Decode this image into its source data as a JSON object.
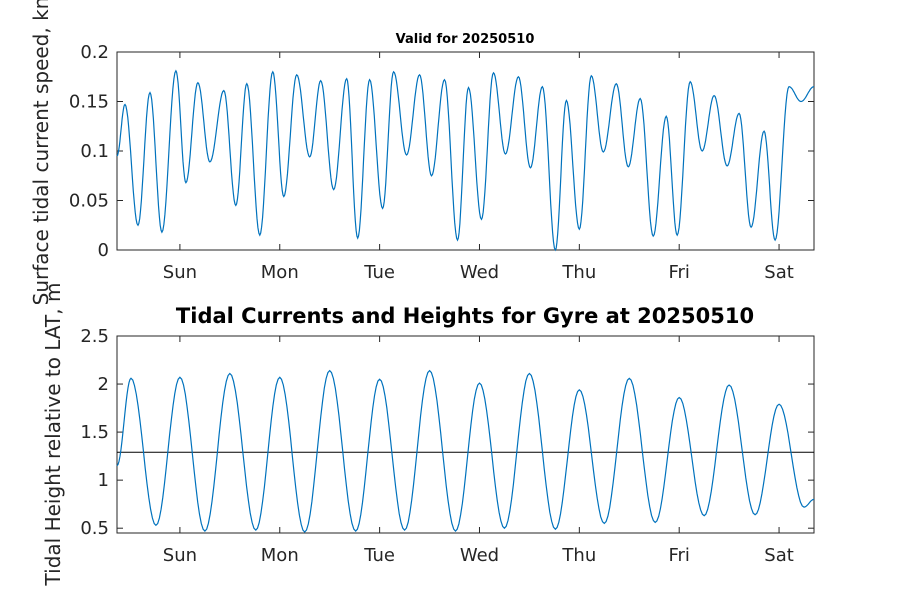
{
  "chart_data": [
    {
      "type": "line",
      "title": "Valid for 20250510",
      "ylabel": "Surface tidal current speed, kn",
      "xlabel": "",
      "ylim": [
        0,
        0.2
      ],
      "yticks": [
        "0",
        "0.05",
        "0.1",
        "0.15",
        "0.2"
      ],
      "ytick_values": [
        0,
        0.05,
        0.1,
        0.15,
        0.2
      ],
      "xlim": [
        -0.63,
        6.35
      ],
      "xticks": [
        "Sun",
        "Mon",
        "Tue",
        "Wed",
        "Thu",
        "Fri",
        "Sat"
      ],
      "xtick_values": [
        0,
        1,
        2,
        3,
        4,
        5,
        6
      ],
      "x_unit": "days from Sunday 00:00",
      "grid": false,
      "series": [
        {
          "color": "#0072BD",
          "x": [
            -0.63,
            -0.55,
            -0.42,
            -0.3,
            -0.18,
            -0.04,
            0.06,
            0.18,
            0.3,
            0.44,
            0.56,
            0.67,
            0.8,
            0.93,
            1.04,
            1.17,
            1.3,
            1.41,
            1.54,
            1.67,
            1.78,
            1.9,
            2.03,
            2.14,
            2.27,
            2.4,
            2.52,
            2.65,
            2.78,
            2.89,
            3.02,
            3.14,
            3.26,
            3.39,
            3.51,
            3.63,
            3.76,
            3.87,
            4.0,
            4.12,
            4.24,
            4.37,
            4.49,
            4.61,
            4.74,
            4.87,
            4.98,
            5.11,
            5.23,
            5.35,
            5.48,
            5.6,
            5.72,
            5.85,
            5.96,
            6.1,
            6.22,
            6.35
          ],
          "y": [
            0.095,
            0.147,
            0.025,
            0.159,
            0.018,
            0.181,
            0.068,
            0.169,
            0.089,
            0.161,
            0.045,
            0.168,
            0.015,
            0.18,
            0.054,
            0.177,
            0.094,
            0.171,
            0.061,
            0.173,
            0.012,
            0.172,
            0.042,
            0.18,
            0.096,
            0.177,
            0.075,
            0.172,
            0.01,
            0.164,
            0.031,
            0.179,
            0.097,
            0.175,
            0.083,
            0.165,
            0.0,
            0.151,
            0.021,
            0.176,
            0.099,
            0.168,
            0.084,
            0.153,
            0.014,
            0.135,
            0.015,
            0.17,
            0.1,
            0.156,
            0.085,
            0.138,
            0.023,
            0.12,
            0.01,
            0.165,
            0.15,
            0.165
          ]
        }
      ]
    },
    {
      "type": "line",
      "title": "Tidal Currents and Heights for Gyre at 20250510",
      "ylabel": "Tidal Height relative to LAT, m",
      "xlabel": "",
      "ylim": [
        0.45,
        2.5
      ],
      "yticks": [
        "0.5",
        "1",
        "1.5",
        "2",
        "2.5"
      ],
      "ytick_values": [
        0.5,
        1,
        1.5,
        2,
        2.5
      ],
      "xlim": [
        -0.63,
        6.35
      ],
      "xticks": [
        "Sun",
        "Mon",
        "Tue",
        "Wed",
        "Thu",
        "Fri",
        "Sat"
      ],
      "xtick_values": [
        0,
        1,
        2,
        3,
        4,
        5,
        6
      ],
      "x_unit": "days from Sunday 00:00",
      "grid": false,
      "reference_line": {
        "y": 1.29,
        "color": "#000000"
      },
      "series": [
        {
          "color": "#0072BD",
          "x": [
            -0.63,
            -0.49,
            -0.24,
            0.0,
            0.25,
            0.5,
            0.76,
            1.0,
            1.25,
            1.5,
            1.76,
            2.0,
            2.25,
            2.5,
            2.76,
            3.0,
            3.25,
            3.5,
            3.76,
            4.0,
            4.25,
            4.5,
            4.76,
            5.0,
            5.25,
            5.5,
            5.76,
            6.0,
            6.25,
            6.35
          ],
          "y": [
            1.15,
            2.06,
            0.53,
            2.07,
            0.47,
            2.11,
            0.48,
            2.07,
            0.46,
            2.14,
            0.47,
            2.05,
            0.48,
            2.14,
            0.47,
            2.01,
            0.5,
            2.11,
            0.49,
            1.94,
            0.55,
            2.06,
            0.56,
            1.86,
            0.63,
            1.99,
            0.64,
            1.79,
            0.72,
            0.8
          ]
        }
      ]
    }
  ]
}
